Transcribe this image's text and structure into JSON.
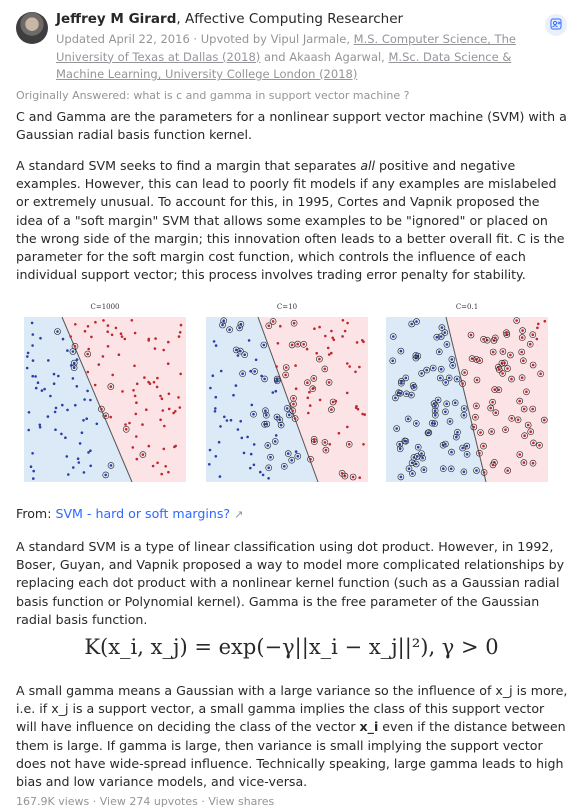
{
  "author": {
    "name": "Jeffrey M Girard",
    "credential": ", Affective Computing Researcher",
    "updated": "Updated April 22, 2016",
    "upvoted_prefix": " · Upvoted by Vipul Jarmale, ",
    "upvoter1_credential": "M.S. Computer Science, The University of Texas at Dallas (2018)",
    "and_text": " and Akaash Agarwal, ",
    "upvoter2_credential": "M.Sc. Data Science & Machine Learning, University College London (2018)"
  },
  "follow_icon": "follow-person-icon",
  "originally_answered": "Originally Answered: what is c and gamma in support vector machine ?",
  "p1": "C and Gamma are the parameters for a nonlinear support vector machine (SVM) with a Gaussian radial basis function kernel.",
  "p2": {
    "before": "A standard SVM seeks to find a margin that separates ",
    "em": "all",
    "after": " positive and negative examples. However, this can lead to poorly fit models if any examples are mislabeled or extremely unusual. To account for this, in 1995, Cortes and Vapnik proposed the idea of a \"soft margin\" SVM that allows some examples to be \"ignored\" or placed on the wrong side of the margin; this innovation often leads to a better overall fit. C is the parameter for the soft margin cost function, which controls the influence of each individual support vector; this process involves trading error penalty for stability."
  },
  "figures": [
    {
      "title": "C=1000"
    },
    {
      "title": "C=10"
    },
    {
      "title": "C=0.1"
    }
  ],
  "colors": {
    "blue_region": "#dce9f7",
    "red_region": "#fbe3e6",
    "blue_point": "#2a3ea8",
    "red_point": "#c0272d",
    "link": "#2e69ff"
  },
  "from": {
    "label": "From: ",
    "link": "SVM - hard or soft margins?",
    "icon": "external-link-icon"
  },
  "p3": "A standard SVM is a type of linear classification using dot product. However, in 1992, Boser, Guyan, and Vapnik proposed a way to model more complicated relationships by replacing each dot product with a nonlinear kernel function (such as a Gaussian radial basis function or Polynomial kernel). Gamma is the free parameter of the Gaussian radial basis function.",
  "formula": "K(x_i, x_j) = exp(−γ||x_i − x_j||²), γ > 0",
  "p4": {
    "before": "A small gamma means a Gaussian with a large variance so the influence of x_j is more, i.e. if x_j is a support vector, a small gamma implies the class of this support vector will have influence on deciding the class of the vector ",
    "bold": "x_i",
    "after": " even if the distance between them is large. If gamma is large, then variance is small implying the support vector does not have wide-spread influence. Technically speaking, large gamma leads to high bias and low variance models, and vice-versa."
  },
  "stats": {
    "views": "167.9K views",
    "sep1": " · ",
    "upvotes": "View 274 upvotes",
    "sep2": " · ",
    "shares": "View shares"
  }
}
